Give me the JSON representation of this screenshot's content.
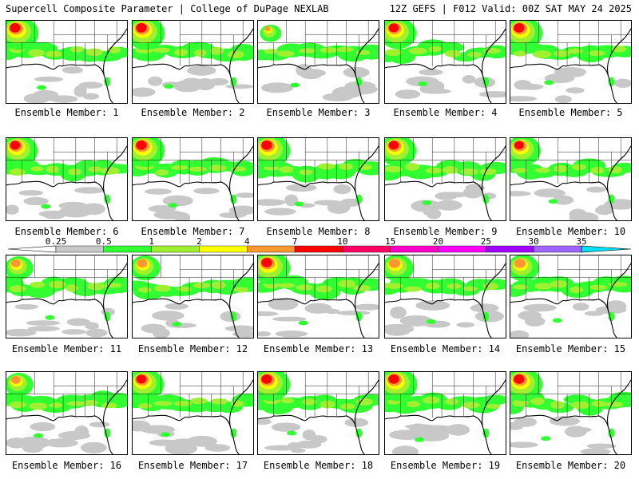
{
  "header": {
    "left": "Supercell Composite Parameter | College of DuPage NEXLAB",
    "right": "12Z GEFS | F012 Valid: 00Z SAT MAY 24 2025"
  },
  "label_prefix": "Ensemble Member: ",
  "members": [
    {
      "number": "1",
      "intensity": 0.85
    },
    {
      "number": "2",
      "intensity": 0.85
    },
    {
      "number": "3",
      "intensity": 0.35
    },
    {
      "number": "4",
      "intensity": 0.8
    },
    {
      "number": "5",
      "intensity": 0.85
    },
    {
      "number": "6",
      "intensity": 0.8
    },
    {
      "number": "7",
      "intensity": 0.85
    },
    {
      "number": "8",
      "intensity": 0.85
    },
    {
      "number": "9",
      "intensity": 0.8
    },
    {
      "number": "10",
      "intensity": 0.75
    },
    {
      "number": "11",
      "intensity": 0.55
    },
    {
      "number": "12",
      "intensity": 0.6
    },
    {
      "number": "13",
      "intensity": 0.85
    },
    {
      "number": "14",
      "intensity": 0.65
    },
    {
      "number": "15",
      "intensity": 0.65
    },
    {
      "number": "16",
      "intensity": 0.55
    },
    {
      "number": "17",
      "intensity": 0.8
    },
    {
      "number": "18",
      "intensity": 0.85
    },
    {
      "number": "19",
      "intensity": 0.85
    },
    {
      "number": "20",
      "intensity": 0.85
    }
  ],
  "colorbar": {
    "levels": [
      "0.25",
      "0.5",
      "1",
      "2",
      "4",
      "7",
      "10",
      "15",
      "20",
      "25",
      "30",
      "35"
    ],
    "colors": [
      "#c8c8c8",
      "#32ff32",
      "#a0f032",
      "#ffff00",
      "#ff9632",
      "#ff0000",
      "#ff0064",
      "#ff00c8",
      "#ff00ff",
      "#a000ff",
      "#a064ff",
      "#00e0ff"
    ]
  }
}
